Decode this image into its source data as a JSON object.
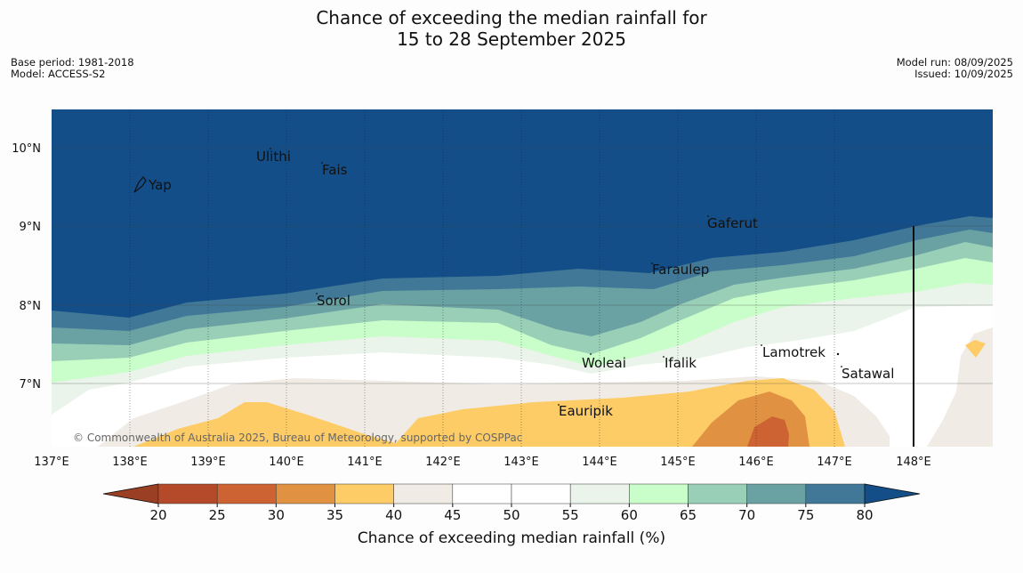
{
  "title": {
    "line1": "Chance of exceeding the median rainfall for",
    "line2": "15 to 28 September 2025"
  },
  "meta_left": {
    "base_period": "Base period: 1981-2018",
    "model": "Model: ACCESS-S2"
  },
  "meta_right": {
    "model_run": "Model run: 08/09/2025",
    "issued": "Issued: 10/09/2025"
  },
  "map": {
    "x_ticks": [
      "137°E",
      "138°E",
      "139°E",
      "140°E",
      "141°E",
      "142°E",
      "143°E",
      "144°E",
      "145°E",
      "146°E",
      "147°E",
      "148°E"
    ],
    "y_ticks": [
      "10°N",
      "9°N",
      "8°N",
      "7°N"
    ],
    "places": [
      "Yap",
      "Ulithi",
      "Fais",
      "Sorol",
      "Gaferut",
      "Faraulep",
      "Woleai",
      "Ifalik",
      "Lamotrek",
      "Satawal",
      "Eauripik"
    ],
    "copyright": "© Commonwealth of Australia 2025, Bureau of Meteorology, supported by COSPPac"
  },
  "colorbar": {
    "title": "Chance of exceeding median rainfall (%)",
    "ticks": [
      "20",
      "25",
      "30",
      "35",
      "40",
      "45",
      "50",
      "55",
      "60",
      "65",
      "70",
      "75",
      "80"
    ],
    "under_color": "#9b3f24",
    "over_color": "#134e88",
    "colors": [
      "#b44a29",
      "#cd6232",
      "#e09242",
      "#fdcc66",
      "#f0ebe5",
      "#ffffff",
      "#ffffff",
      "#eaf4ea",
      "#c9fdc9",
      "#9acfb7",
      "#6aa1a3",
      "#417897"
    ]
  }
}
